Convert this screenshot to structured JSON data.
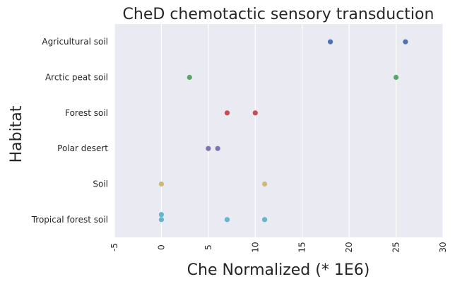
{
  "chart_data": {
    "type": "scatter",
    "title": "CheD chemotactic sensory transduction",
    "xlabel": "Che Normalized (* 1E6)",
    "ylabel": "Habitat",
    "xlim": [
      -5,
      30
    ],
    "xticks": [
      -5,
      0,
      5,
      10,
      15,
      20,
      25,
      30
    ],
    "grid": true,
    "categories": [
      "Agricultural soil",
      "Arctic peat soil",
      "Forest soil",
      "Polar desert",
      "Soil",
      "Tropical forest soil"
    ],
    "colors": [
      "#4c72b0",
      "#55a868",
      "#c44e52",
      "#8172b2",
      "#ccb974",
      "#64b5cd"
    ],
    "points": [
      {
        "category": "Agricultural soil",
        "x": 18,
        "jitter": 0
      },
      {
        "category": "Agricultural soil",
        "x": 26,
        "jitter": 0
      },
      {
        "category": "Arctic peat soil",
        "x": 3,
        "jitter": 0
      },
      {
        "category": "Arctic peat soil",
        "x": 25,
        "jitter": 0
      },
      {
        "category": "Forest soil",
        "x": 7,
        "jitter": 0
      },
      {
        "category": "Forest soil",
        "x": 10,
        "jitter": 0
      },
      {
        "category": "Polar desert",
        "x": 5,
        "jitter": 0
      },
      {
        "category": "Polar desert",
        "x": 6,
        "jitter": 0
      },
      {
        "category": "Soil",
        "x": 0,
        "jitter": 0
      },
      {
        "category": "Soil",
        "x": 11,
        "jitter": 0
      },
      {
        "category": "Tropical forest soil",
        "x": 0,
        "jitter": -0.14
      },
      {
        "category": "Tropical forest soil",
        "x": 0,
        "jitter": 0
      },
      {
        "category": "Tropical forest soil",
        "x": 7,
        "jitter": 0
      },
      {
        "category": "Tropical forest soil",
        "x": 11,
        "jitter": 0
      }
    ]
  }
}
